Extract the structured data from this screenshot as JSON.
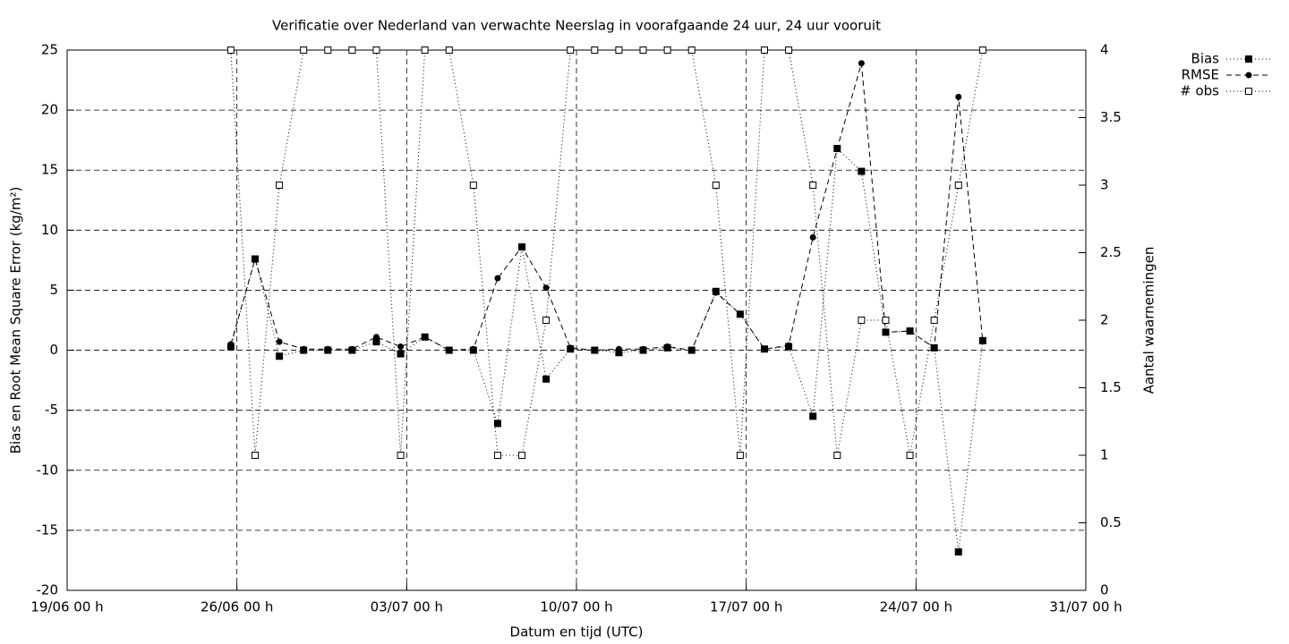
{
  "chart_data": {
    "type": "line",
    "title": "Verificatie over Nederland van verwachte Neerslag in voorafgaande 24 uur, 24 uur vooruit",
    "xlabel": "Datum en tijd (UTC)",
    "ylabel": "Bias en Root Mean Square Error (kg/m²)",
    "y2label": "Aantal waarnemingen",
    "x": [
      "25/06 18 h",
      "26/06 18 h",
      "27/06 18 h",
      "28/06 18 h",
      "29/06 18 h",
      "30/06 18 h",
      "01/07 18 h",
      "02/07 18 h",
      "03/07 18 h",
      "04/07 18 h",
      "05/07 18 h",
      "06/07 18 h",
      "07/07 18 h",
      "08/07 18 h",
      "09/07 18 h",
      "10/07 18 h",
      "11/07 18 h",
      "12/07 18 h",
      "13/07 18 h",
      "14/07 18 h",
      "15/07 18 h",
      "16/07 18 h",
      "17/07 18 h",
      "18/07 18 h",
      "19/07 18 h",
      "20/07 18 h",
      "21/07 18 h",
      "22/07 18 h",
      "23/07 18 h",
      "24/07 18 h",
      "25/07 18 h",
      "26/07 18 h"
    ],
    "xlim": [
      "19/06 00 h",
      "31/07 00 h"
    ],
    "xticks": [
      "19/06 00 h",
      "26/06 00 h",
      "03/07 00 h",
      "10/07 00 h",
      "17/07 00 h",
      "24/07 00 h",
      "31/07 00 h"
    ],
    "ylim": [
      -20,
      25
    ],
    "yticks": [
      -20,
      -15,
      -10,
      -5,
      0,
      5,
      10,
      15,
      20,
      25
    ],
    "y2lim": [
      0,
      4
    ],
    "y2ticks": [
      0,
      0.5,
      1,
      1.5,
      2,
      2.5,
      3,
      3.5,
      4
    ],
    "grid": true,
    "legend": "outside-top-right",
    "series": [
      {
        "name": "Bias",
        "color": "#000000",
        "marker": "filled-square",
        "dash": "dotted",
        "values": [
          0.3,
          7.6,
          -0.5,
          0,
          0,
          0,
          0.7,
          -0.3,
          1.1,
          0,
          0,
          -6.1,
          8.6,
          -2.4,
          0.1,
          0,
          -0.2,
          0,
          0.2,
          0,
          4.9,
          3.0,
          0.1,
          0.3,
          -5.5,
          16.8,
          14.9,
          1.5,
          1.6,
          0.2,
          -16.8,
          0.8
        ]
      },
      {
        "name": "RMSE",
        "color": "#000000",
        "marker": "filled-circle",
        "dash": "dashed",
        "values": [
          0.5,
          7.6,
          0.7,
          0.1,
          0.1,
          0.1,
          1.1,
          0.3,
          1.1,
          0,
          0.1,
          6.0,
          8.6,
          5.2,
          0.2,
          0,
          0.1,
          0.1,
          0.3,
          0,
          4.8,
          3.0,
          0.1,
          0.4,
          9.4,
          16.8,
          23.9,
          1.5,
          1.6,
          0.2,
          21.1,
          0.8
        ]
      },
      {
        "name": "# obs",
        "color": "#000000",
        "marker": "open-square",
        "dash": "dotted",
        "axis": "y2",
        "values": [
          4,
          1,
          3,
          4,
          4,
          4,
          4,
          1,
          4,
          4,
          3,
          1,
          1,
          2,
          4,
          4,
          4,
          4,
          4,
          4,
          3,
          1,
          4,
          4,
          3,
          1,
          2,
          2,
          1,
          2,
          3,
          4
        ]
      }
    ]
  }
}
